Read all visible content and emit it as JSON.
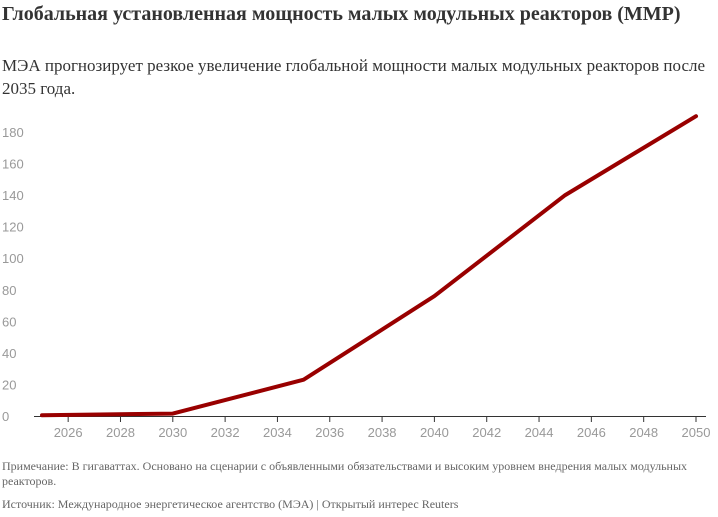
{
  "title": "Глобальная установленная мощность малых модульных реакторов (ММР)",
  "subtitle": "МЭА прогнозирует резкое увеличение глобальной мощности малых модульных реакторов после 2035 года.",
  "note": "Примечание: В гигаваттах. Основано на сценарии с объявленными обязательствами и высоким уровнем внедрения малых модульных реакторов.",
  "source": "Источник: Международное энергетическое агентство (МЭА) | Открытый интерес Reuters",
  "colors": {
    "line": "#990000",
    "axis": "#333333",
    "tick_label": "#999999"
  },
  "chart_data": {
    "type": "line",
    "title": "Глобальная установленная мощность малых модульных реакторов (ММР)",
    "xlabel": "",
    "ylabel": "",
    "x": [
      2025,
      2030,
      2035,
      2040,
      2045,
      2050
    ],
    "series": [
      {
        "values": [
          0.5,
          1.5,
          23,
          76,
          140,
          190
        ]
      }
    ],
    "xlim": [
      2025,
      2050
    ],
    "ylim": [
      0,
      190
    ],
    "xticks": [
      "2026",
      "2028",
      "2030",
      "2032",
      "2034",
      "2036",
      "2038",
      "2040",
      "2042",
      "2044",
      "2046",
      "2048",
      "2050"
    ],
    "yticks": [
      "0",
      "20",
      "40",
      "60",
      "80",
      "100",
      "120",
      "140",
      "160",
      "180"
    ],
    "grid": false,
    "legend": "none"
  }
}
